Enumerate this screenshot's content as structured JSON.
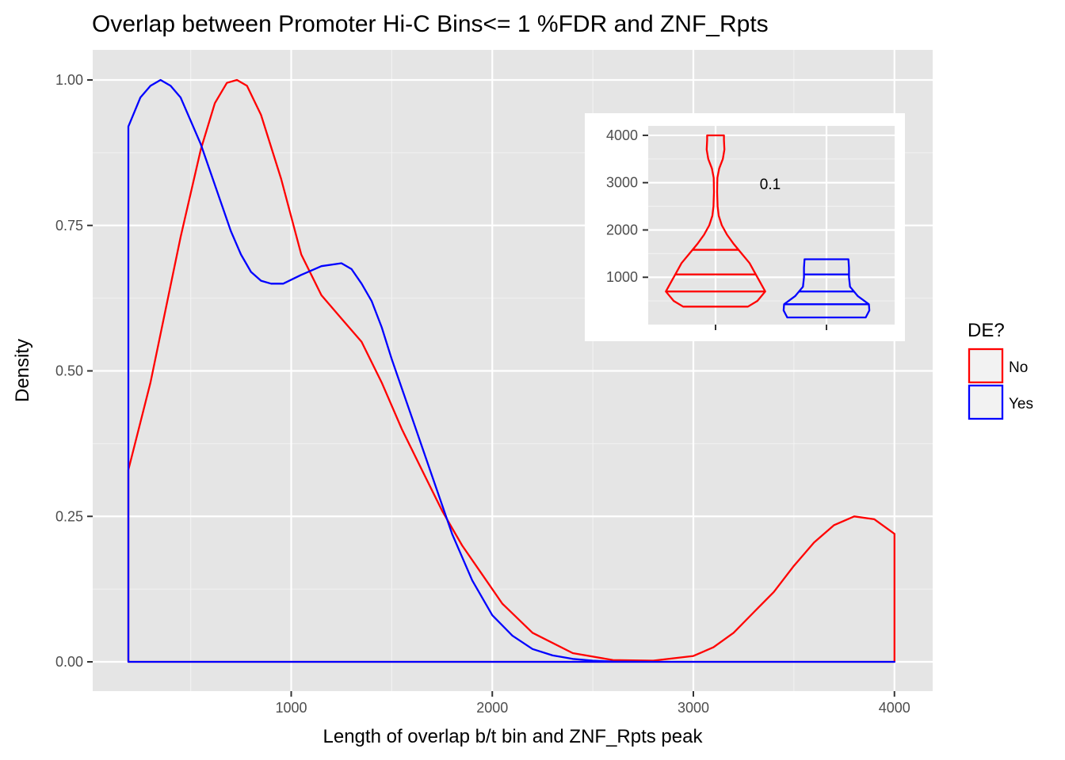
{
  "chart_data": [
    {
      "type": "area",
      "title": "Overlap between Promoter Hi-C Bins<= 1 %FDR and ZNF_Rpts",
      "xlabel": "Length of overlap b/t bin and ZNF_Rpts peak",
      "ylabel": "Density",
      "xlim": [
        0,
        4200
      ],
      "ylim": [
        -0.05,
        1.05
      ],
      "x_ticks": [
        1000,
        2000,
        3000,
        4000
      ],
      "x_tick_labels": [
        "1000",
        "2000",
        "3000",
        "4000"
      ],
      "y_ticks": [
        0,
        0.25,
        0.5,
        0.75,
        1.0
      ],
      "y_tick_labels": [
        "0.00",
        "0.25",
        "0.50",
        "0.75",
        "1.00"
      ],
      "grid": true,
      "legend": {
        "title": "DE?",
        "position": "right",
        "entries": [
          {
            "label": "No",
            "color": "#ff0000"
          },
          {
            "label": "Yes",
            "color": "#0000ff"
          }
        ]
      },
      "series": [
        {
          "name": "No",
          "color": "#ff0000",
          "x": [
            190,
            300,
            450,
            550,
            620,
            680,
            730,
            780,
            850,
            950,
            1050,
            1150,
            1250,
            1350,
            1450,
            1550,
            1650,
            1750,
            1850,
            1950,
            2050,
            2200,
            2400,
            2600,
            2800,
            3000,
            3100,
            3200,
            3300,
            3400,
            3500,
            3600,
            3700,
            3800,
            3900,
            4000
          ],
          "y": [
            0.33,
            0.48,
            0.73,
            0.88,
            0.96,
            0.995,
            1.0,
            0.99,
            0.94,
            0.83,
            0.7,
            0.63,
            0.59,
            0.55,
            0.48,
            0.4,
            0.33,
            0.26,
            0.2,
            0.15,
            0.1,
            0.05,
            0.015,
            0.003,
            0.002,
            0.01,
            0.025,
            0.05,
            0.085,
            0.12,
            0.165,
            0.205,
            0.235,
            0.25,
            0.245,
            0.22
          ]
        },
        {
          "name": "Yes",
          "color": "#0000ff",
          "x": [
            190,
            250,
            300,
            350,
            400,
            450,
            500,
            550,
            600,
            650,
            700,
            750,
            800,
            850,
            900,
            960,
            1050,
            1150,
            1250,
            1300,
            1350,
            1400,
            1450,
            1500,
            1600,
            1700,
            1800,
            1900,
            2000,
            2100,
            2200,
            2300,
            2400,
            2500,
            2600,
            2800,
            3000,
            3500,
            4000
          ],
          "y": [
            0.92,
            0.97,
            0.99,
            1.0,
            0.99,
            0.97,
            0.93,
            0.89,
            0.84,
            0.79,
            0.74,
            0.7,
            0.67,
            0.655,
            0.65,
            0.65,
            0.665,
            0.68,
            0.685,
            0.675,
            0.65,
            0.62,
            0.575,
            0.52,
            0.42,
            0.32,
            0.22,
            0.14,
            0.08,
            0.045,
            0.022,
            0.011,
            0.005,
            0.002,
            0.0005,
            0.0,
            0.0,
            0.0,
            0.0
          ]
        }
      ]
    },
    {
      "type": "violin",
      "ylim": [
        0,
        4200
      ],
      "y_ticks": [
        1000,
        2000,
        3000,
        4000
      ],
      "y_tick_labels": [
        "1000",
        "2000",
        "3000",
        "4000"
      ],
      "annotation": "0.1",
      "groups": [
        {
          "name": "No",
          "color": "#ff0000",
          "quantiles": [
            700,
            1060,
            1580
          ],
          "outline": [
            [
              380,
              0.62
            ],
            [
              500,
              0.8
            ],
            [
              700,
              0.95
            ],
            [
              900,
              0.85
            ],
            [
              1100,
              0.75
            ],
            [
              1300,
              0.65
            ],
            [
              1500,
              0.5
            ],
            [
              1700,
              0.35
            ],
            [
              1900,
              0.22
            ],
            [
              2100,
              0.12
            ],
            [
              2300,
              0.06
            ],
            [
              2500,
              0.04
            ],
            [
              2800,
              0.03
            ],
            [
              3100,
              0.035
            ],
            [
              3300,
              0.07
            ],
            [
              3500,
              0.14
            ],
            [
              3700,
              0.17
            ],
            [
              3900,
              0.16
            ],
            [
              4000,
              0.16
            ]
          ]
        },
        {
          "name": "Yes",
          "color": "#0000ff",
          "quantiles": [
            430,
            700,
            1060
          ],
          "outline": [
            [
              150,
              0.75
            ],
            [
              300,
              0.82
            ],
            [
              430,
              0.81
            ],
            [
              600,
              0.6
            ],
            [
              800,
              0.45
            ],
            [
              1000,
              0.43
            ],
            [
              1200,
              0.43
            ],
            [
              1380,
              0.42
            ]
          ]
        }
      ]
    }
  ]
}
